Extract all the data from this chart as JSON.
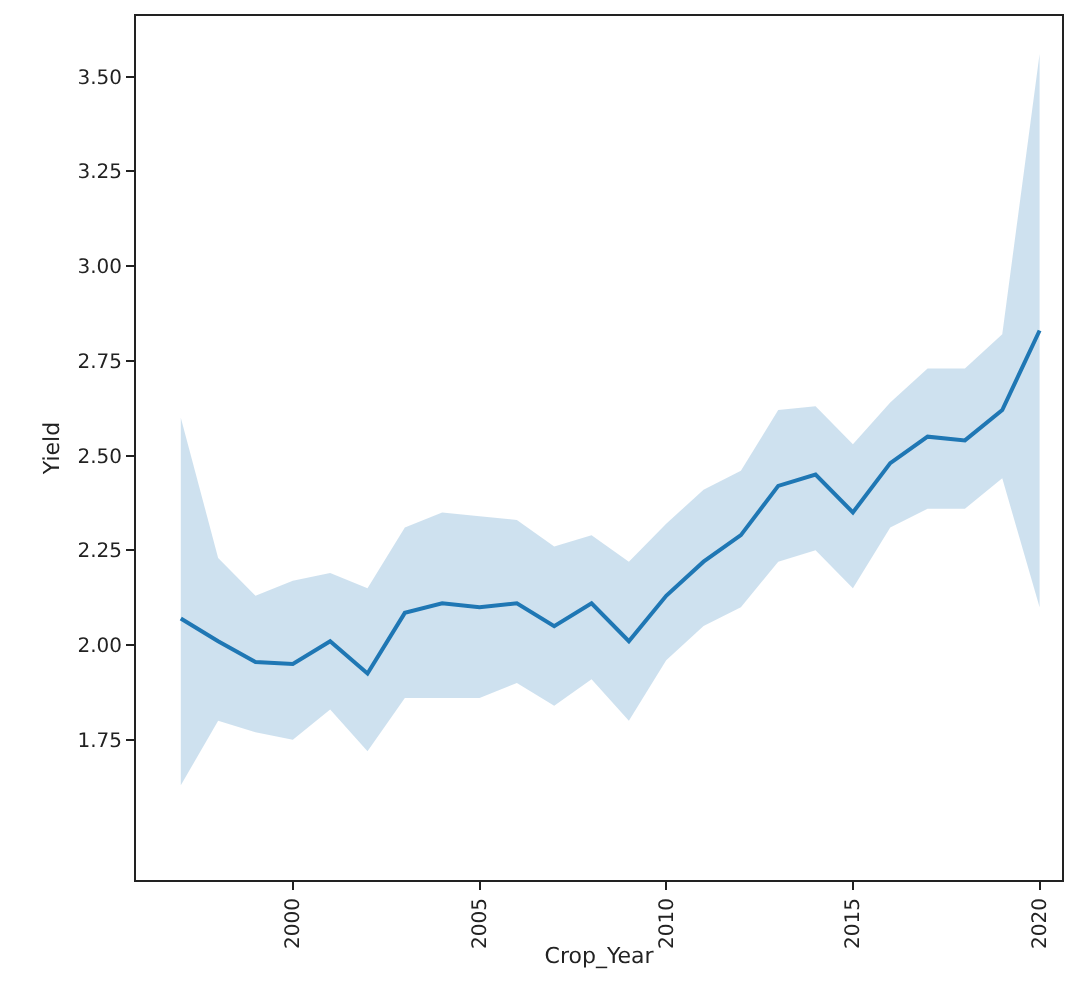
{
  "chart_data": {
    "type": "line",
    "xlabel": "Crop_Year",
    "ylabel": "Yield",
    "x": [
      1997,
      1998,
      1999,
      2000,
      2001,
      2002,
      2003,
      2004,
      2005,
      2006,
      2007,
      2008,
      2009,
      2010,
      2011,
      2012,
      2013,
      2014,
      2015,
      2016,
      2017,
      2018,
      2019,
      2020
    ],
    "series": [
      {
        "color": "#1f77b4",
        "values": [
          2.07,
          2.01,
          1.955,
          1.95,
          2.01,
          1.925,
          2.085,
          2.11,
          2.1,
          2.11,
          2.05,
          2.11,
          2.01,
          2.13,
          2.22,
          2.29,
          2.42,
          2.45,
          2.35,
          2.48,
          2.55,
          2.54,
          2.62,
          2.83
        ],
        "upper": [
          2.6,
          2.23,
          2.13,
          2.17,
          2.19,
          2.15,
          2.31,
          2.35,
          2.34,
          2.33,
          2.26,
          2.29,
          2.22,
          2.32,
          2.41,
          2.46,
          2.62,
          2.63,
          2.53,
          2.64,
          2.73,
          2.73,
          2.82,
          3.56
        ],
        "lower": [
          1.63,
          1.8,
          1.77,
          1.75,
          1.83,
          1.72,
          1.86,
          1.86,
          1.86,
          1.9,
          1.84,
          1.91,
          1.8,
          1.96,
          2.05,
          2.1,
          2.22,
          2.25,
          2.15,
          2.31,
          2.36,
          2.36,
          2.44,
          2.1
        ]
      }
    ],
    "xlim": [
      1995.8,
      2020.6
    ],
    "ylim": [
      1.38,
      3.66
    ],
    "xticks": [
      2000,
      2005,
      2010,
      2015,
      2020
    ],
    "yticks": [
      {
        "value": 1.75,
        "label": "1.75"
      },
      {
        "value": 2,
        "label": "2.00"
      },
      {
        "value": 2.25,
        "label": "2.25"
      },
      {
        "value": 2.5,
        "label": "2.50"
      },
      {
        "value": 2.75,
        "label": "2.75"
      },
      {
        "value": 3,
        "label": "3.00"
      },
      {
        "value": 3.25,
        "label": "3.25"
      },
      {
        "value": 3.5,
        "label": "3.50"
      }
    ],
    "grid": false,
    "marker": "none",
    "line_style": "solid"
  }
}
